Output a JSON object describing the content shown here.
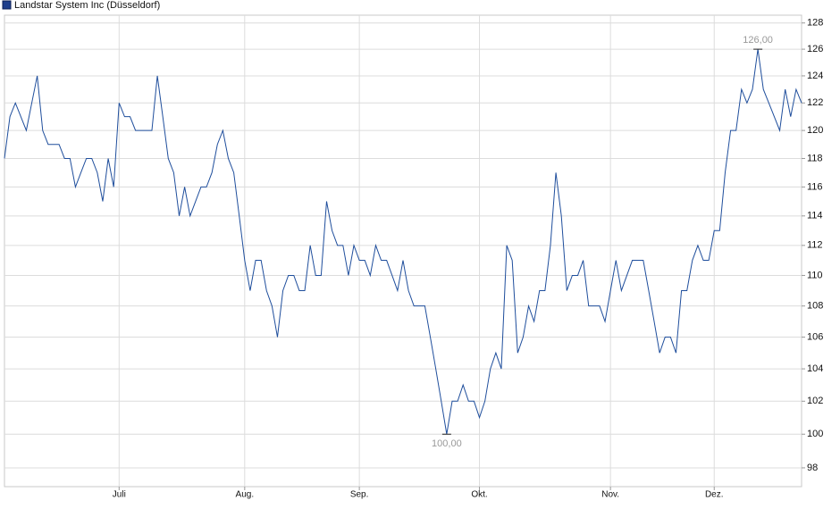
{
  "chart_data": {
    "type": "line",
    "series": [
      {
        "name": "Landstar System Inc (Düsseldorf)",
        "color": "#1f4e9c",
        "values": [
          118,
          121,
          122,
          121,
          120,
          122,
          124,
          120,
          119,
          119,
          119,
          118,
          118,
          116,
          117,
          118,
          118,
          117,
          115,
          118,
          116,
          122,
          121,
          121,
          120,
          120,
          120,
          120,
          124,
          121,
          118,
          117,
          114,
          116,
          114,
          115,
          116,
          116,
          117,
          119,
          120,
          118,
          117,
          114,
          111,
          109,
          111,
          111,
          109,
          108,
          106,
          109,
          110,
          110,
          109,
          109,
          112,
          110,
          110,
          115,
          113,
          112,
          112,
          110,
          112,
          111,
          111,
          110,
          112,
          111,
          111,
          110,
          109,
          111,
          109,
          108,
          108,
          108,
          106,
          104,
          102,
          100,
          102,
          102,
          103,
          102,
          102,
          101,
          102,
          104,
          105,
          104,
          112,
          111,
          105,
          106,
          108,
          107,
          109,
          109,
          112,
          117,
          114,
          109,
          110,
          110,
          111,
          108,
          108,
          108,
          107,
          109,
          111,
          109,
          110,
          111,
          111,
          111,
          109,
          107,
          105,
          106,
          106,
          105,
          109,
          109,
          111,
          112,
          111,
          111,
          113,
          113,
          117,
          120,
          120,
          123,
          122,
          123,
          126,
          123,
          122,
          121,
          120,
          123,
          121,
          123,
          122
        ],
        "value_labels": [
          null,
          null,
          null,
          null,
          null,
          null,
          null,
          null,
          null,
          null,
          null,
          null,
          null,
          null,
          null,
          null,
          null,
          null,
          null,
          null,
          null,
          null,
          null,
          null,
          null,
          null,
          null,
          null,
          null,
          null,
          null,
          null,
          null,
          null,
          null,
          null,
          null,
          null,
          null,
          null,
          null,
          null,
          null,
          null,
          null,
          null,
          null,
          null,
          null,
          null,
          null,
          null,
          null,
          null,
          null,
          null,
          null,
          null,
          null,
          null,
          null,
          null,
          null,
          null,
          null,
          null,
          null,
          null,
          null,
          null,
          null,
          null,
          null,
          null,
          null,
          null,
          null,
          null,
          null,
          null,
          null,
          "100,00",
          null,
          null,
          null,
          null,
          null,
          null,
          null,
          null,
          null,
          null,
          null,
          null,
          null,
          null,
          null,
          null,
          null,
          null,
          null,
          null,
          null,
          null,
          null,
          null,
          null,
          null,
          null,
          null,
          null,
          null,
          null,
          null,
          null,
          null,
          null,
          null,
          null,
          null,
          null,
          null,
          null,
          null,
          null,
          null,
          null,
          null,
          null,
          null,
          null,
          null,
          null,
          null,
          null,
          null,
          null,
          null,
          "126,00",
          null,
          null,
          null,
          null,
          null,
          null,
          null,
          null
        ]
      }
    ],
    "categories": [
      null,
      null,
      null,
      null,
      null,
      null,
      null,
      null,
      null,
      null,
      null,
      null,
      null,
      null,
      null,
      null,
      null,
      null,
      null,
      null,
      null,
      "Juli",
      null,
      null,
      null,
      null,
      null,
      null,
      null,
      null,
      null,
      null,
      null,
      null,
      null,
      null,
      null,
      null,
      null,
      null,
      null,
      null,
      null,
      null,
      "Aug.",
      null,
      null,
      null,
      null,
      null,
      null,
      null,
      null,
      null,
      null,
      null,
      null,
      null,
      null,
      null,
      null,
      null,
      null,
      null,
      null,
      "Sep.",
      null,
      null,
      null,
      null,
      null,
      null,
      null,
      null,
      null,
      null,
      null,
      null,
      null,
      null,
      null,
      null,
      null,
      null,
      null,
      null,
      null,
      "Okt.",
      null,
      null,
      null,
      null,
      null,
      null,
      null,
      null,
      null,
      null,
      null,
      null,
      null,
      null,
      null,
      null,
      null,
      null,
      null,
      null,
      null,
      null,
      null,
      "Nov.",
      null,
      null,
      null,
      null,
      null,
      null,
      null,
      null,
      null,
      null,
      null,
      null,
      null,
      null,
      null,
      null,
      null,
      null,
      "Dez.",
      null,
      null,
      null,
      null,
      null,
      null,
      null,
      null,
      null,
      null,
      null,
      null,
      null,
      null,
      null,
      null
    ],
    "ylim": [
      96.9,
      128.6
    ],
    "yticks": [
      98,
      100,
      102,
      104,
      106,
      108,
      110,
      112,
      114,
      116,
      118,
      120,
      122,
      124,
      126,
      128
    ],
    "log_scale": true,
    "grid": true
  }
}
